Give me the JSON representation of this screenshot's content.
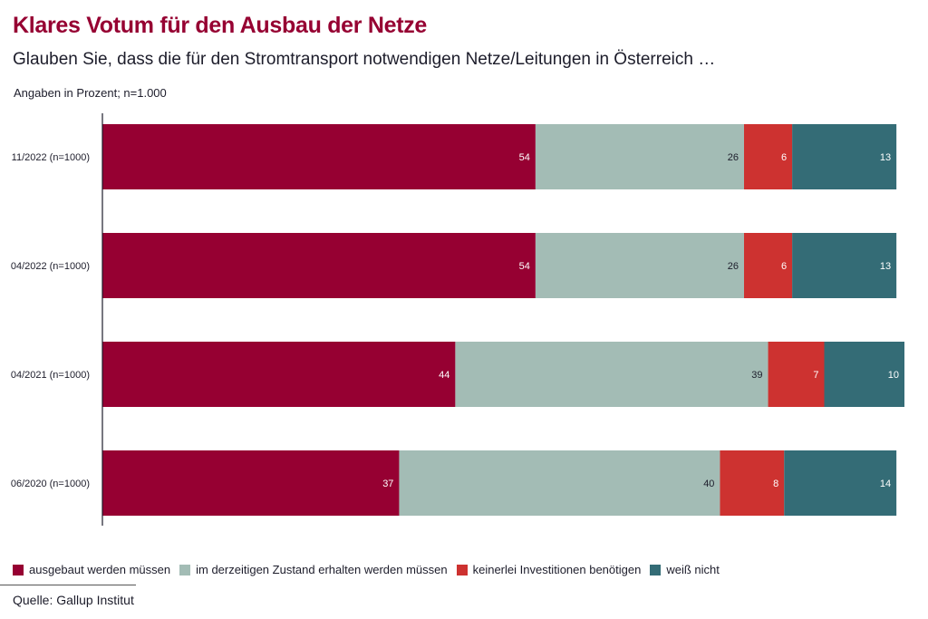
{
  "title": "Klares Votum für den Ausbau der Netze",
  "subtitle": "Glauben Sie, dass die für den Stromtransport notwendigen Netze/Leitungen in Österreich …",
  "note": "Angaben in Prozent; n=1.000",
  "source": "Quelle: Gallup Institut",
  "chart_data": {
    "type": "bar",
    "orientation": "horizontal",
    "stacked": true,
    "xlim": [
      0,
      100
    ],
    "grid": false,
    "legend_placement": "bottom",
    "categories": [
      "11/2022 (n=1000)",
      "04/2022 (n=1000)",
      "04/2021 (n=1000)",
      "06/2020 (n=1000)"
    ],
    "series": [
      {
        "name": "ausgebaut werden müssen",
        "color": "#960032",
        "label_color": "#ffffff",
        "values": [
          54,
          54,
          44,
          37
        ]
      },
      {
        "name": "im derzeitigen Zustand erhalten werden müssen",
        "color": "#a3bcb5",
        "label_color": "#1d1d2b",
        "values": [
          26,
          26,
          39,
          40
        ]
      },
      {
        "name": "keinerlei Investitionen benötigen",
        "color": "#cd3230",
        "label_color": "#ffffff",
        "values": [
          6,
          6,
          7,
          8
        ]
      },
      {
        "name": "weiß nicht",
        "color": "#346c76",
        "label_color": "#ffffff",
        "values": [
          13,
          13,
          10,
          14
        ]
      }
    ]
  }
}
